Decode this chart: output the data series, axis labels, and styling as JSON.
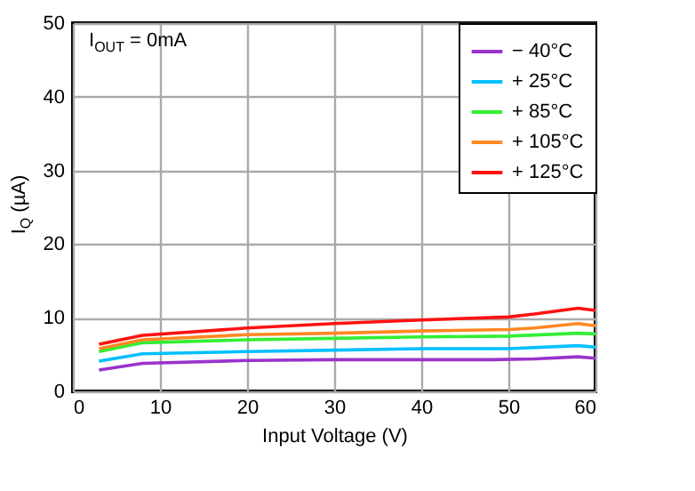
{
  "chart_data": {
    "type": "line",
    "xlabel": "Input Voltage (V)",
    "ylabel": "I$_{Q}$ (µA)",
    "annotations": [
      "I$_{OUT}$ = 0mA"
    ],
    "xlim": [
      0,
      60
    ],
    "xticks": [
      0,
      10,
      20,
      30,
      40,
      50,
      60
    ],
    "ylim": [
      0,
      50
    ],
    "yticks": [
      0,
      10,
      20,
      30,
      40,
      50
    ],
    "grid": true,
    "legend": "top right",
    "line_style": "solid",
    "series": [
      {
        "name": "− 40°C",
        "color": "#9933cc",
        "x": [
          3,
          8,
          20,
          30,
          40,
          48,
          53,
          58,
          60
        ],
        "values": [
          2.9,
          3.8,
          4.2,
          4.3,
          4.3,
          4.3,
          4.4,
          4.7,
          4.5
        ]
      },
      {
        "name": "+ 25°C",
        "color": "#00bfff",
        "x": [
          3,
          8,
          20,
          30,
          40,
          50,
          58,
          60
        ],
        "values": [
          4.1,
          5.1,
          5.4,
          5.6,
          5.8,
          5.8,
          6.2,
          6.0
        ]
      },
      {
        "name": "+ 85°C",
        "color": "#33ee33",
        "x": [
          3,
          8,
          20,
          30,
          40,
          50,
          58,
          60
        ],
        "values": [
          5.4,
          6.6,
          7.0,
          7.2,
          7.4,
          7.5,
          7.9,
          7.8
        ]
      },
      {
        "name": "+ 105°C",
        "color": "#ff8822",
        "x": [
          3,
          8,
          20,
          30,
          40,
          50,
          53,
          58,
          60
        ],
        "values": [
          5.8,
          7.0,
          7.7,
          7.9,
          8.2,
          8.4,
          8.6,
          9.2,
          8.9
        ]
      },
      {
        "name": "+ 125°C",
        "color": "#ff1111",
        "x": [
          3,
          8,
          20,
          30,
          40,
          50,
          53,
          58,
          60
        ],
        "values": [
          6.4,
          7.6,
          8.6,
          9.2,
          9.7,
          10.1,
          10.5,
          11.3,
          11.0
        ]
      }
    ]
  }
}
